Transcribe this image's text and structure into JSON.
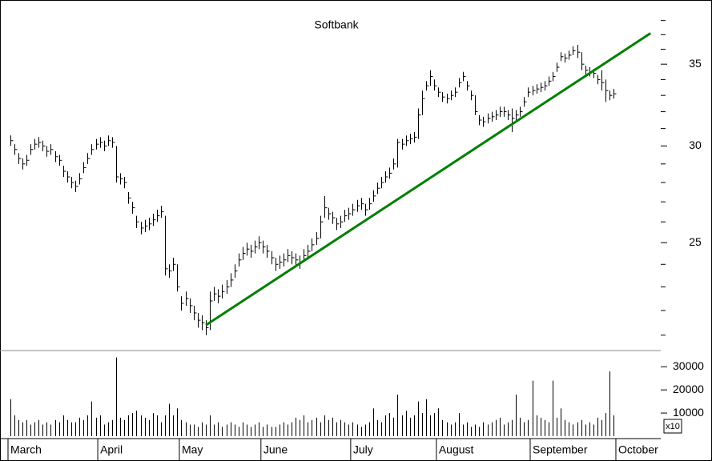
{
  "chart_data": {
    "type": "ohlc",
    "title": "Softbank",
    "color": "#000000",
    "xlim": [
      0,
      160
    ],
    "xticks": [
      {
        "value": 0,
        "label": "March"
      },
      {
        "value": 22,
        "label": "April"
      },
      {
        "value": 42,
        "label": "May"
      },
      {
        "value": 62,
        "label": "June"
      },
      {
        "value": 84,
        "label": "July"
      },
      {
        "value": 105,
        "label": "August"
      },
      {
        "value": 128,
        "label": "September"
      },
      {
        "value": 149,
        "label": "October"
      }
    ],
    "ylim": [
      20.4,
      39.5
    ],
    "log_scale": true,
    "yticks": [
      25,
      30,
      35
    ],
    "yticks_minor": [
      21,
      22,
      23,
      24,
      26,
      27,
      28,
      29,
      31,
      32,
      33,
      34,
      36,
      37,
      38
    ],
    "high": [
      30.6,
      30.1,
      29.6,
      29.3,
      29.5,
      30.1,
      30.4,
      30.5,
      30.3,
      30.0,
      30.1,
      29.7,
      29.5,
      28.9,
      28.6,
      28.3,
      28.1,
      28.5,
      29.1,
      29.6,
      30.1,
      30.4,
      30.5,
      30.3,
      30.6,
      30.5,
      30.0,
      28.5,
      28.3,
      27.5,
      27.0,
      26.3,
      26.0,
      26.1,
      26.2,
      26.4,
      26.6,
      26.8,
      26.3,
      24.0,
      24.3,
      24.0,
      22.6,
      22.8,
      22.5,
      22.2,
      21.9,
      21.8,
      21.6,
      22.8,
      23.0,
      22.9,
      23.1,
      23.3,
      23.6,
      24.0,
      24.5,
      24.8,
      25.0,
      24.9,
      25.1,
      25.3,
      25.1,
      24.9,
      24.6,
      24.3,
      24.4,
      24.5,
      24.7,
      24.6,
      24.5,
      24.4,
      24.7,
      24.9,
      25.2,
      25.5,
      26.3,
      27.3,
      26.7,
      26.5,
      26.2,
      26.3,
      26.6,
      26.7,
      26.9,
      27.1,
      27.2,
      26.9,
      27.2,
      27.6,
      28.0,
      28.3,
      28.6,
      28.8,
      29.3,
      30.4,
      30.4,
      30.6,
      30.7,
      30.8,
      32.2,
      33.3,
      33.9,
      34.6,
      34.0,
      33.5,
      33.2,
      33.1,
      33.3,
      33.5,
      34.1,
      34.5,
      33.9,
      33.3,
      33.0,
      31.8,
      31.7,
      31.9,
      32.0,
      32.1,
      32.3,
      32.3,
      32.1,
      32.2,
      32.1,
      32.3,
      32.9,
      33.5,
      33.6,
      33.7,
      33.8,
      33.9,
      34.2,
      34.5,
      35.1,
      35.8,
      35.7,
      35.9,
      36.2,
      36.3,
      35.8,
      34.9,
      34.8,
      34.7,
      34.3,
      34.6,
      34.0,
      33.3,
      33.4
    ],
    "low": [
      30.0,
      29.5,
      29.0,
      28.7,
      28.9,
      29.5,
      29.8,
      29.9,
      29.7,
      29.4,
      29.5,
      29.1,
      28.9,
      28.3,
      28.0,
      27.7,
      27.5,
      27.9,
      28.5,
      29.0,
      29.5,
      29.8,
      29.9,
      29.7,
      30.0,
      29.9,
      28.0,
      27.9,
      27.7,
      26.9,
      26.4,
      25.7,
      25.4,
      25.5,
      25.6,
      25.8,
      26.0,
      26.2,
      23.5,
      23.4,
      23.7,
      22.8,
      22.0,
      22.2,
      21.9,
      21.6,
      21.3,
      21.2,
      21.0,
      21.2,
      22.4,
      22.3,
      22.5,
      22.7,
      23.0,
      23.4,
      23.9,
      24.2,
      24.4,
      24.3,
      24.5,
      24.7,
      24.5,
      24.3,
      24.0,
      23.7,
      23.8,
      23.9,
      24.1,
      24.0,
      23.9,
      23.8,
      24.1,
      24.3,
      24.6,
      24.9,
      25.2,
      26.2,
      26.1,
      25.9,
      25.6,
      25.7,
      26.0,
      26.1,
      26.3,
      26.5,
      26.6,
      26.3,
      26.6,
      27.0,
      27.4,
      27.7,
      28.0,
      28.2,
      28.7,
      28.8,
      29.8,
      30.0,
      30.1,
      30.2,
      30.4,
      31.8,
      33.3,
      33.6,
      33.3,
      32.9,
      32.6,
      32.5,
      32.7,
      32.9,
      33.5,
      33.9,
      33.3,
      32.7,
      31.8,
      31.2,
      31.1,
      31.3,
      31.4,
      31.5,
      31.7,
      31.7,
      31.5,
      30.8,
      31.5,
      31.7,
      32.3,
      32.9,
      33.0,
      33.1,
      33.2,
      33.3,
      33.6,
      33.9,
      34.5,
      35.2,
      35.1,
      35.3,
      35.6,
      35.4,
      34.6,
      34.3,
      34.2,
      34.1,
      33.7,
      33.3,
      32.6,
      32.7,
      32.8
    ],
    "close": [
      30.3,
      29.8,
      29.3,
      29.0,
      29.2,
      29.8,
      30.1,
      30.2,
      30.0,
      29.7,
      29.8,
      29.4,
      29.2,
      28.6,
      28.3,
      28.0,
      27.8,
      28.2,
      28.8,
      29.3,
      29.8,
      30.1,
      30.2,
      30.0,
      30.3,
      30.2,
      28.3,
      28.2,
      28.0,
      27.2,
      26.7,
      26.0,
      25.7,
      25.8,
      25.9,
      26.1,
      26.3,
      26.5,
      23.8,
      23.7,
      24.0,
      23.0,
      22.3,
      22.5,
      22.2,
      21.9,
      21.6,
      21.5,
      21.3,
      22.4,
      22.7,
      22.6,
      22.8,
      23.0,
      23.3,
      23.7,
      24.2,
      24.5,
      24.7,
      24.6,
      24.8,
      25.0,
      24.8,
      24.6,
      24.3,
      24.0,
      24.1,
      24.2,
      24.4,
      24.3,
      24.2,
      24.1,
      24.4,
      24.6,
      24.9,
      25.2,
      26.0,
      26.7,
      26.4,
      26.2,
      25.9,
      26.0,
      26.3,
      26.4,
      26.6,
      26.8,
      26.9,
      26.6,
      26.9,
      27.3,
      27.7,
      28.0,
      28.3,
      28.5,
      29.0,
      30.2,
      30.1,
      30.3,
      30.4,
      30.5,
      31.8,
      32.8,
      33.6,
      34.2,
      33.6,
      33.2,
      32.9,
      32.8,
      33.0,
      33.2,
      33.8,
      34.2,
      33.6,
      33.0,
      32.0,
      31.5,
      31.4,
      31.6,
      31.7,
      31.8,
      32.0,
      32.0,
      31.8,
      31.6,
      31.8,
      32.0,
      32.6,
      33.2,
      33.3,
      33.4,
      33.5,
      33.6,
      33.9,
      34.2,
      34.8,
      35.5,
      35.4,
      35.6,
      35.9,
      35.8,
      35.0,
      34.6,
      34.5,
      34.4,
      34.0,
      33.8,
      33.3,
      33.0,
      33.1
    ],
    "trendline": {
      "color": "#008000",
      "x": [
        48,
        157
      ],
      "values": [
        21.4,
        37.1
      ]
    },
    "volume": {
      "label": "x10",
      "color": "#000000",
      "ylim": [
        0,
        37000
      ],
      "yticks": [
        10000,
        20000,
        30000
      ],
      "values": [
        16000,
        9000,
        7000,
        6000,
        7000,
        5000,
        6000,
        7000,
        5000,
        6000,
        5000,
        7000,
        6000,
        9000,
        7000,
        6000,
        6000,
        8000,
        7000,
        9000,
        15000,
        8000,
        9000,
        5000,
        6000,
        7000,
        34000,
        8000,
        7000,
        9000,
        10000,
        11000,
        9000,
        8000,
        7000,
        10000,
        9000,
        6000,
        9000,
        14000,
        9000,
        12000,
        7000,
        6000,
        5000,
        5000,
        4000,
        6000,
        5000,
        9000,
        5000,
        6000,
        4000,
        5000,
        6000,
        5000,
        4000,
        6000,
        5000,
        4000,
        5000,
        6000,
        4000,
        5000,
        4000,
        4000,
        5000,
        6000,
        5000,
        6000,
        8000,
        7000,
        9000,
        6000,
        7000,
        8000,
        6000,
        9000,
        7000,
        8000,
        6000,
        7000,
        6000,
        5000,
        6000,
        5000,
        4000,
        5000,
        6000,
        12000,
        7000,
        6000,
        9000,
        10000,
        8000,
        18000,
        9000,
        11000,
        8000,
        9000,
        15000,
        10000,
        16000,
        9000,
        10000,
        12000,
        7000,
        6000,
        5000,
        6000,
        10000,
        5000,
        6000,
        4000,
        5000,
        4000,
        6000,
        5000,
        6000,
        7000,
        8000,
        5000,
        6000,
        7000,
        18000,
        8000,
        6000,
        7000,
        24000,
        9000,
        8000,
        7000,
        6000,
        24000,
        8000,
        12000,
        7000,
        6000,
        5000,
        6000,
        7000,
        5000,
        6000,
        5000,
        8000,
        7000,
        10000,
        28000,
        9000
      ]
    }
  }
}
